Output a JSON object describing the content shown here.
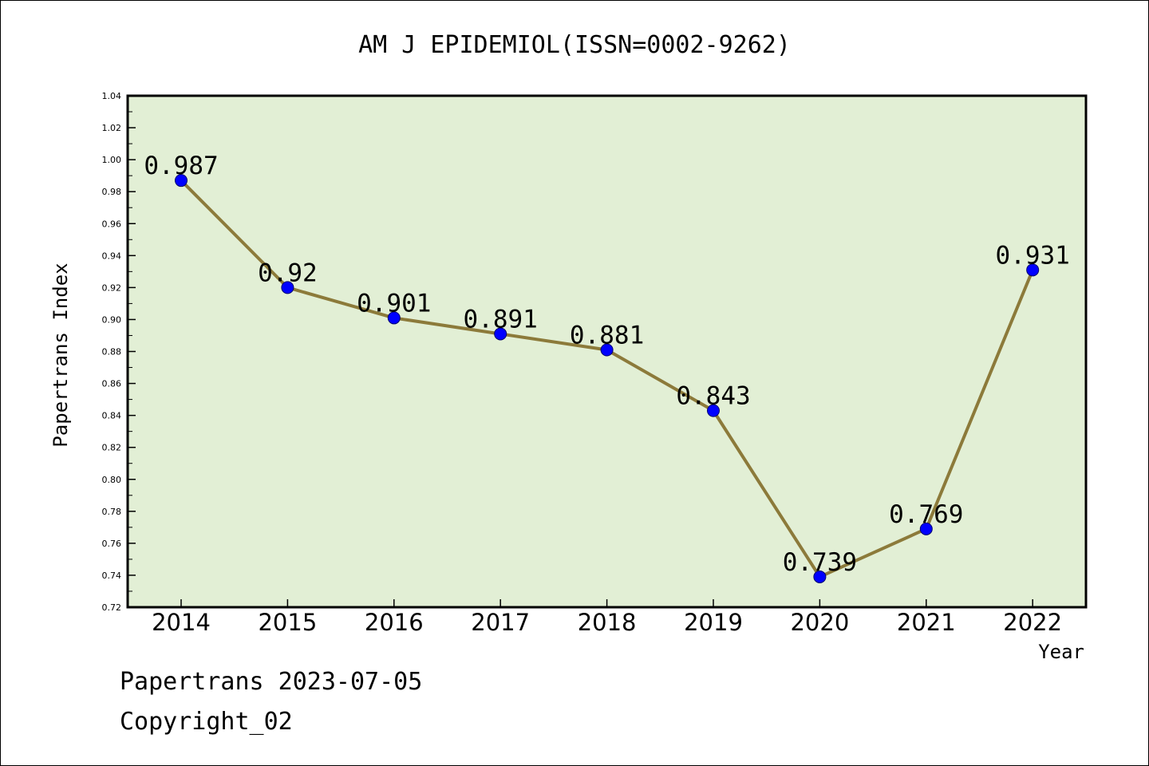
{
  "chart_data": {
    "type": "line",
    "title": "AM J EPIDEMIOL(ISSN=0002-9262)",
    "xlabel": "Year",
    "ylabel": "Papertrans Index",
    "categories": [
      "2014",
      "2015",
      "2016",
      "2017",
      "2018",
      "2019",
      "2020",
      "2021",
      "2022"
    ],
    "series": [
      {
        "values": [
          0.987,
          0.92,
          0.901,
          0.891,
          0.881,
          0.843,
          0.739,
          0.769,
          0.931
        ]
      }
    ],
    "data_labels": [
      "0.987",
      "0.92",
      "0.901",
      "0.891",
      "0.881",
      "0.843",
      "0.739",
      "0.769",
      "0.931"
    ],
    "ylim": [
      0.72,
      1.04
    ],
    "yticks": [
      "0.72",
      "0.74",
      "0.76",
      "0.78",
      "0.80",
      "0.82",
      "0.84",
      "0.86",
      "0.88",
      "0.90",
      "0.92",
      "0.94",
      "0.96",
      "0.98",
      "1.00",
      "1.02",
      "1.04"
    ],
    "grid": false,
    "legend": "none",
    "colors": {
      "plot_background": "#e2efd5",
      "line": "#8c7a3a",
      "marker": "#0000ff"
    }
  },
  "footer": {
    "line1": "Papertrans 2023-07-05",
    "line2": "Copyright_02"
  }
}
